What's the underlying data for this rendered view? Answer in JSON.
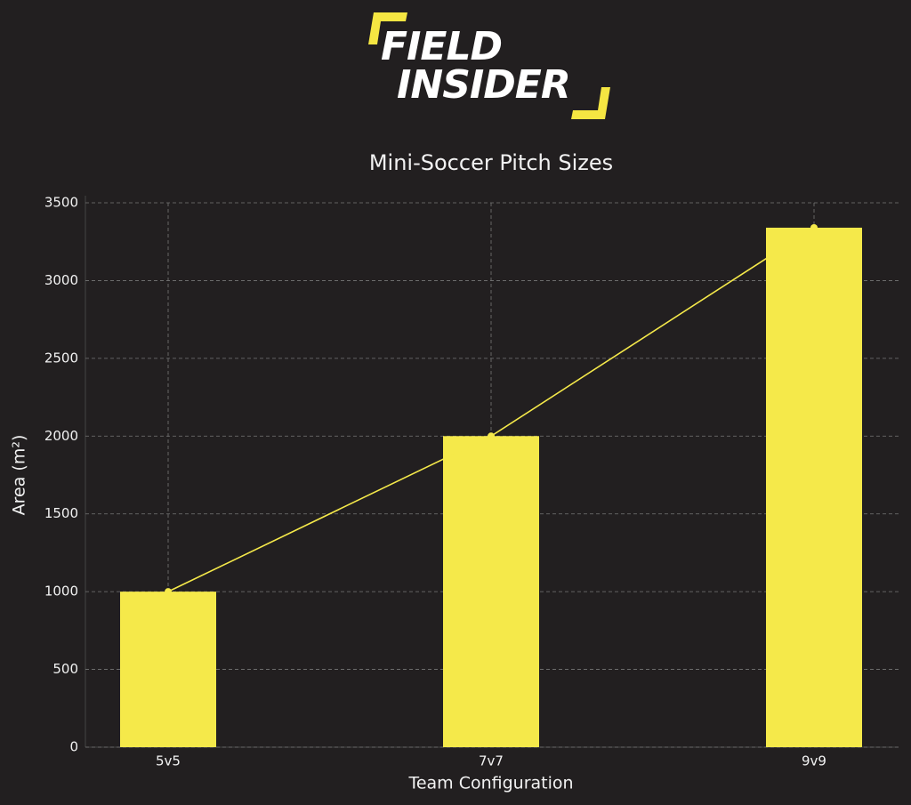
{
  "logo": {
    "line1": "FIELD",
    "line2": "INSIDER"
  },
  "chart_data": {
    "type": "bar",
    "title": "Mini-Soccer Pitch Sizes",
    "x_label": "Team Configuration",
    "y_label": "Area (m²)",
    "categories": [
      "5v5",
      "7v7",
      "9v9"
    ],
    "values": [
      1000,
      2000,
      3340
    ],
    "color": "#f5e94a",
    "line_color": "#f5e94a",
    "line_overlay": true,
    "ylim": [
      0,
      3500
    ],
    "yticks": [
      0,
      500,
      1000,
      1500,
      2000,
      2500,
      3000,
      3500
    ],
    "grid": true
  }
}
